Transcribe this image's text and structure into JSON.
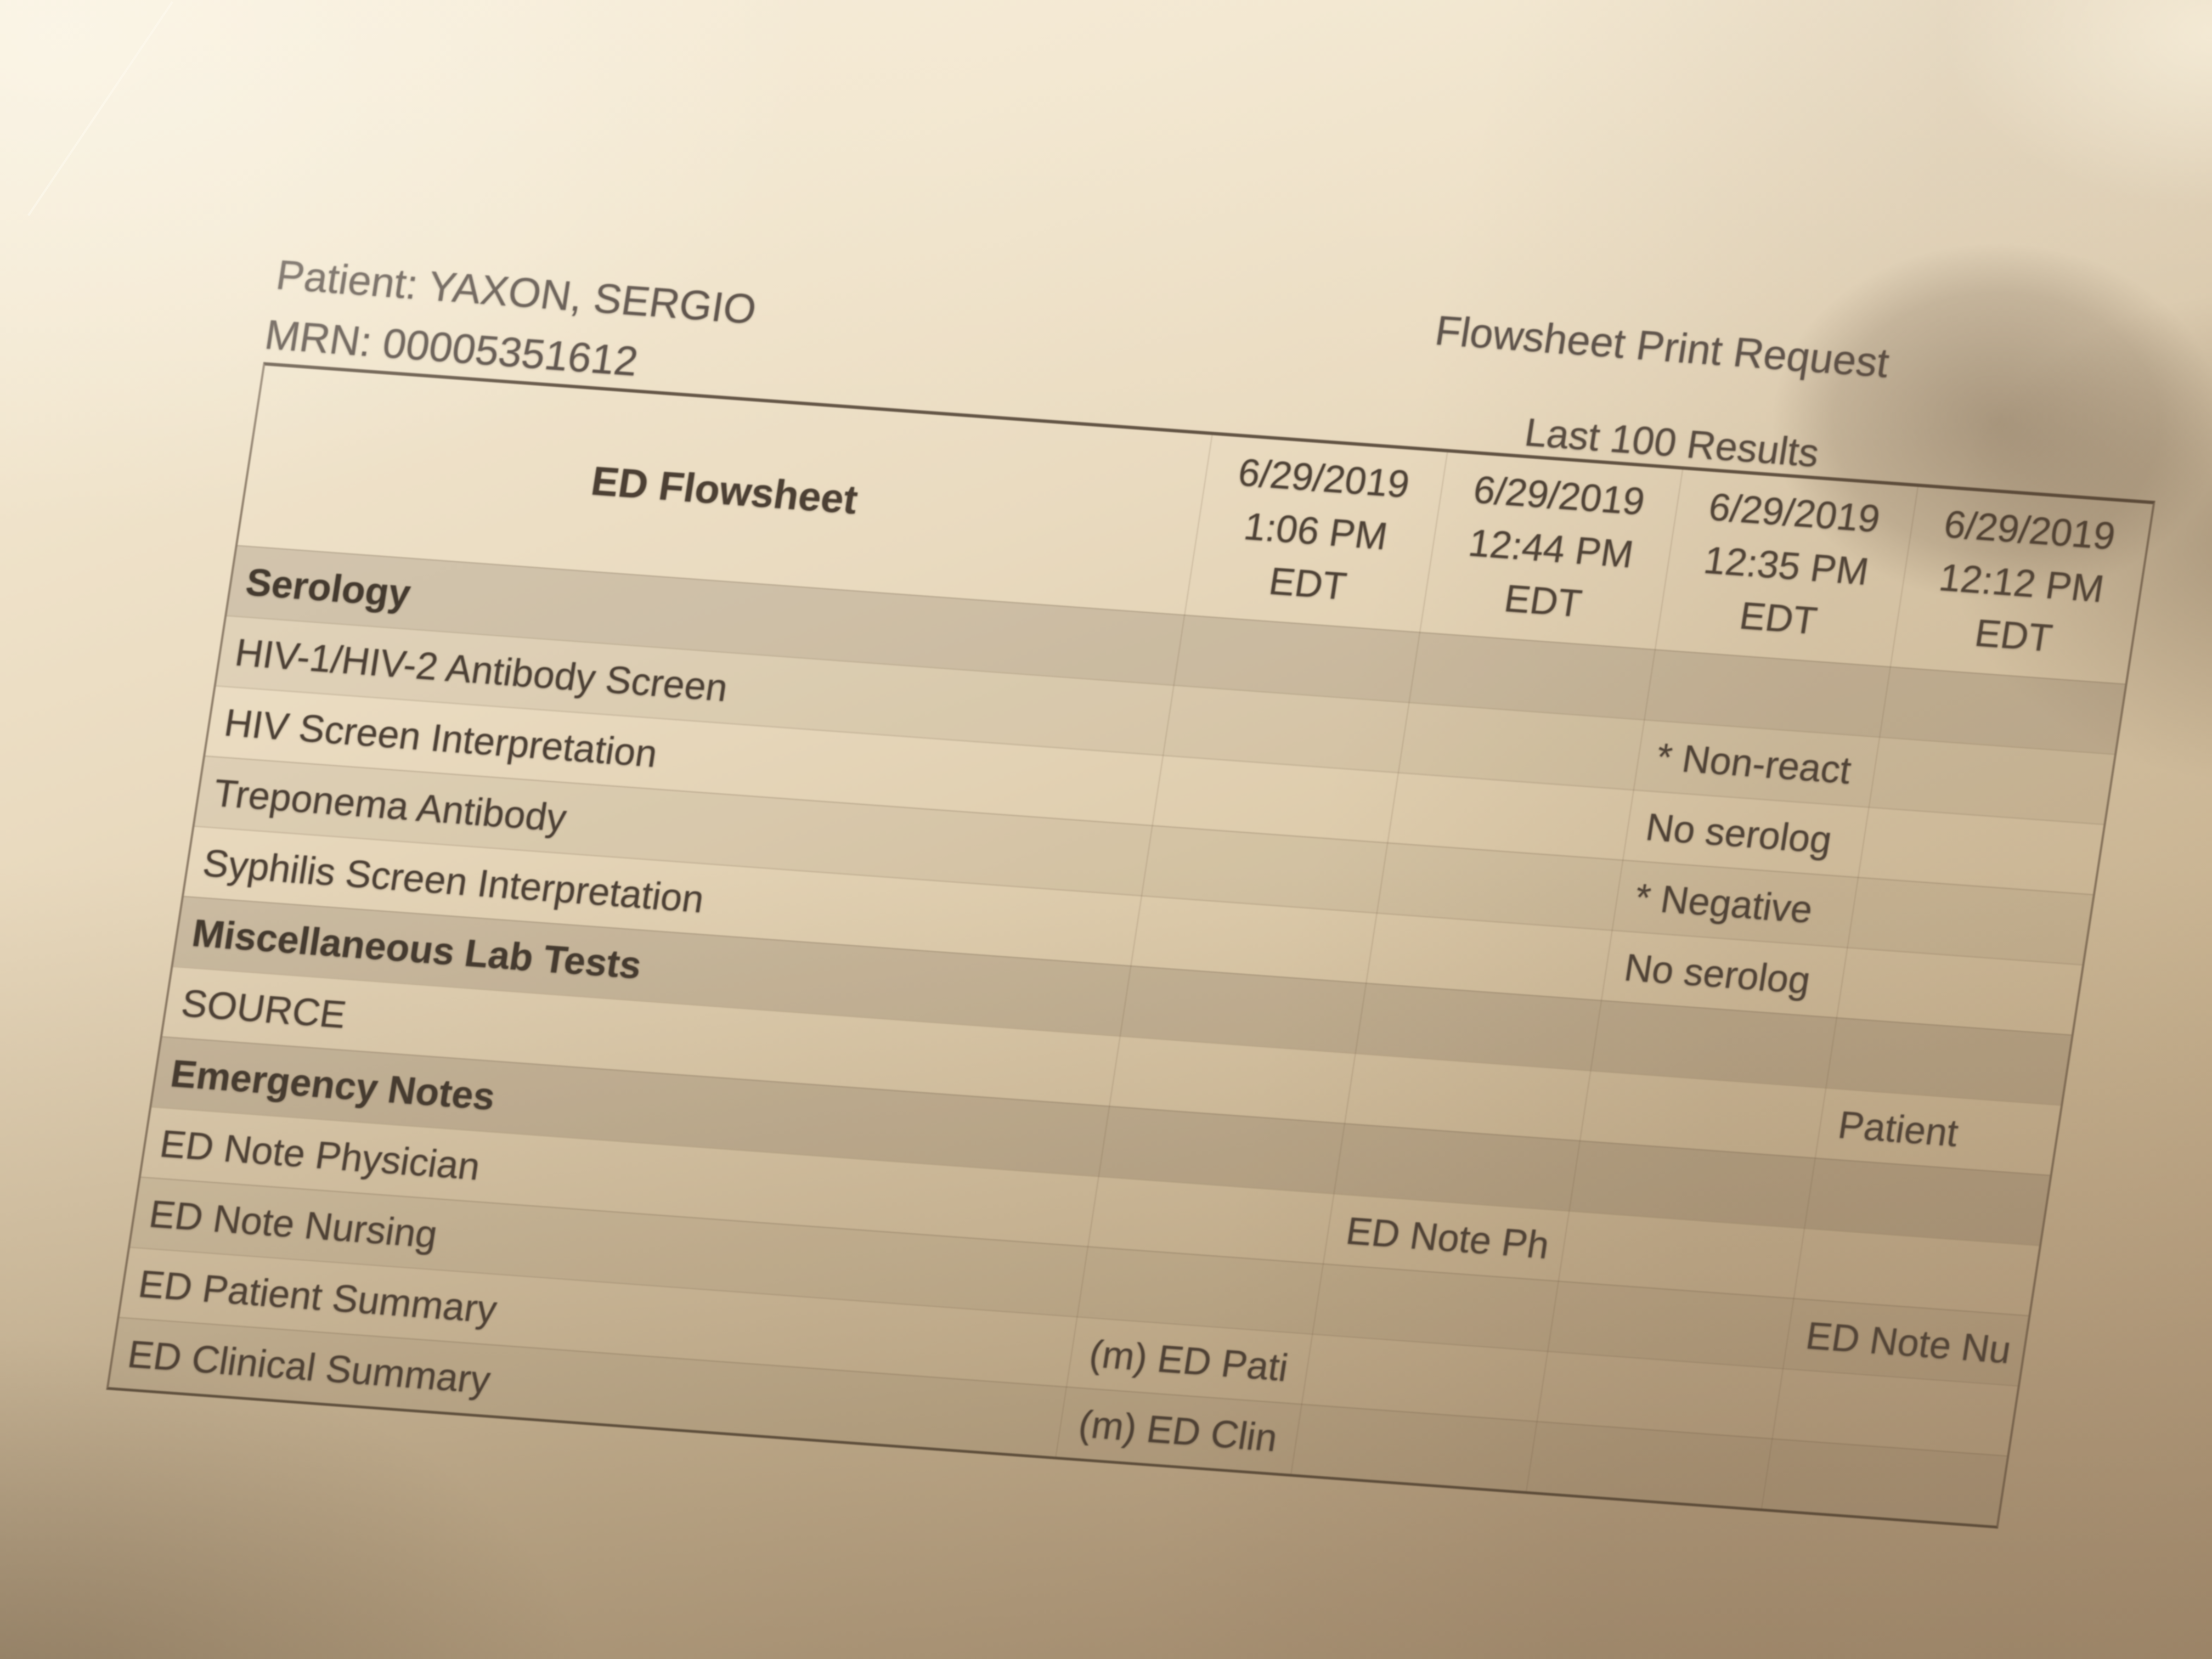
{
  "header": {
    "patient": "Patient: YAXON, SERGIO",
    "mrn": "MRN: 00005351612",
    "title": "Flowsheet Print Request",
    "subtitle": "Last 100 Results"
  },
  "table": {
    "corner_label": "ED Flowsheet",
    "columns": [
      {
        "date": "6/29/2019",
        "time": "1:06 PM",
        "tz": "EDT"
      },
      {
        "date": "6/29/2019",
        "time": "12:44 PM",
        "tz": "EDT"
      },
      {
        "date": "6/29/2019",
        "time": "12:35 PM",
        "tz": "EDT"
      },
      {
        "date": "6/29/2019",
        "time": "12:12 PM",
        "tz": "EDT"
      }
    ],
    "rows": [
      {
        "label": "Serology",
        "type": "section",
        "shade": "",
        "values": [
          "",
          "",
          "",
          ""
        ]
      },
      {
        "label": "HIV-1/HIV-2 Antibody Screen",
        "type": "row",
        "shade": "alt",
        "values": [
          "",
          "",
          "* Non-react",
          ""
        ]
      },
      {
        "label": "HIV Screen Interpretation",
        "type": "row",
        "shade": "",
        "values": [
          "",
          "",
          "No serolog",
          ""
        ]
      },
      {
        "label": "Treponema Antibody",
        "type": "row",
        "shade": "alt",
        "values": [
          "",
          "",
          "* Negative",
          ""
        ]
      },
      {
        "label": "Syphilis Screen Interpretation",
        "type": "row",
        "shade": "",
        "values": [
          "",
          "",
          "No serolog",
          ""
        ]
      },
      {
        "label": "Miscellaneous Lab Tests",
        "type": "section",
        "shade": "",
        "values": [
          "",
          "",
          "",
          ""
        ]
      },
      {
        "label": "SOURCE",
        "type": "row",
        "shade": "",
        "values": [
          "",
          "",
          "",
          "Patient"
        ]
      },
      {
        "label": "Emergency Notes",
        "type": "section",
        "shade": "",
        "values": [
          "",
          "",
          "",
          ""
        ]
      },
      {
        "label": "ED Note Physician",
        "type": "row",
        "shade": "",
        "values": [
          "",
          "ED Note Ph",
          "",
          ""
        ]
      },
      {
        "label": "ED Note Nursing",
        "type": "row",
        "shade": "alt",
        "values": [
          "",
          "",
          "",
          "ED Note Nu"
        ]
      },
      {
        "label": "ED Patient Summary",
        "type": "row",
        "shade": "",
        "values": [
          "(m) ED Pati",
          "",
          "",
          ""
        ]
      },
      {
        "label": "ED Clinical Summary",
        "type": "row",
        "shade": "alt",
        "values": [
          "(m) ED Clin",
          "",
          "",
          ""
        ]
      }
    ]
  },
  "colors": {
    "paper_light": "#f5ebd7",
    "paper_dark": "#bfa684",
    "ink": "#4a3e33",
    "section_shade": "rgba(98,86,72,0.20)",
    "alt_shade": "rgba(98,86,72,0.09)",
    "grid_line": "rgba(112,93,70,0.26)",
    "table_border": "rgba(66,52,38,0.82)"
  }
}
